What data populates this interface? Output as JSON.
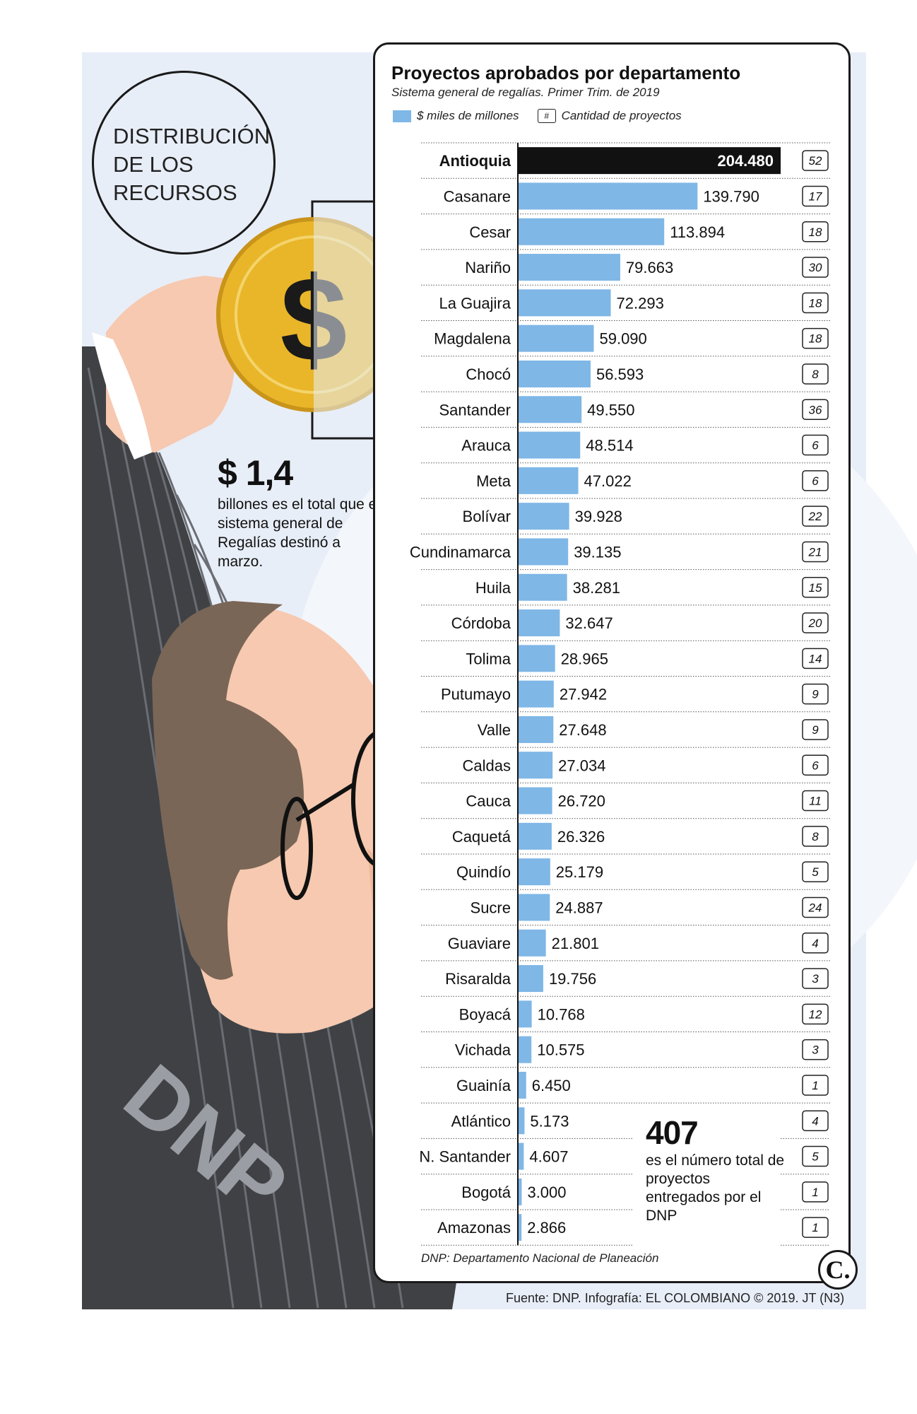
{
  "header": {
    "circle_text": "DISTRIBUCIÓN DE LOS RECURSOS"
  },
  "stat": {
    "value": "$ 1,4",
    "desc": "billones es el total que el sistema general de Regalías destinó a marzo."
  },
  "illustration": {
    "coin_symbol": "$",
    "sleeve_text": "DNP"
  },
  "panel": {
    "title": "Proyectos aprobados por departamento",
    "subtitle": "Sistema general de regalías. Primer Trim. de 2019",
    "legend_value": "$ miles de millones",
    "legend_box": "#",
    "legend_count": "Cantidad de proyectos"
  },
  "total": {
    "number": "407",
    "desc": "es el número total de proyectos entregados por el DNP"
  },
  "footnote": "DNP: Departamento Nacional de Planeación",
  "source": "Fuente: DNP. Infografía: EL COLOMBIANO © 2019. JT (N3)",
  "logo": "C.",
  "colors": {
    "bar": "#7fb7e6",
    "highlight_bar": "#111111",
    "background": "#e8eef8"
  },
  "chart_data": {
    "type": "bar",
    "orientation": "horizontal",
    "categories": [
      "Antioquia",
      "Casanare",
      "Cesar",
      "Nariño",
      "La Guajira",
      "Magdalena",
      "Chocó",
      "Santander",
      "Arauca",
      "Meta",
      "Bolívar",
      "Cundinamarca",
      "Huila",
      "Córdoba",
      "Tolima",
      "Putumayo",
      "Valle",
      "Caldas",
      "Cauca",
      "Caquetá",
      "Quindío",
      "Sucre",
      "Guaviare",
      "Risaralda",
      "Boyacá",
      "Vichada",
      "Guainía",
      "Atlántico",
      "N. Santander",
      "Bogotá",
      "Amazonas"
    ],
    "values": [
      204480,
      139790,
      113894,
      79663,
      72293,
      59090,
      56593,
      49550,
      48514,
      47022,
      39928,
      39135,
      38281,
      32647,
      28965,
      27942,
      27648,
      27034,
      26720,
      26326,
      25179,
      24887,
      21801,
      19756,
      10768,
      10575,
      6450,
      5173,
      4607,
      3000,
      2866
    ],
    "value_labels": [
      "204.480",
      "139.790",
      "113.894",
      "79.663",
      "72.293",
      "59.090",
      "56.593",
      "49.550",
      "48.514",
      "47.022",
      "39.928",
      "39.135",
      "38.281",
      "32.647",
      "28.965",
      "27.942",
      "27.648",
      "27.034",
      "26.720",
      "26.326",
      "25.179",
      "24.887",
      "21.801",
      "19.756",
      "10.768",
      "10.575",
      "6.450",
      "5.173",
      "4.607",
      "3.000",
      "2.866"
    ],
    "counts": [
      52,
      17,
      18,
      30,
      18,
      18,
      8,
      36,
      6,
      6,
      22,
      21,
      15,
      20,
      14,
      9,
      9,
      6,
      11,
      8,
      5,
      24,
      4,
      3,
      12,
      3,
      1,
      4,
      5,
      1,
      1
    ],
    "highlight": "Antioquia"
  }
}
